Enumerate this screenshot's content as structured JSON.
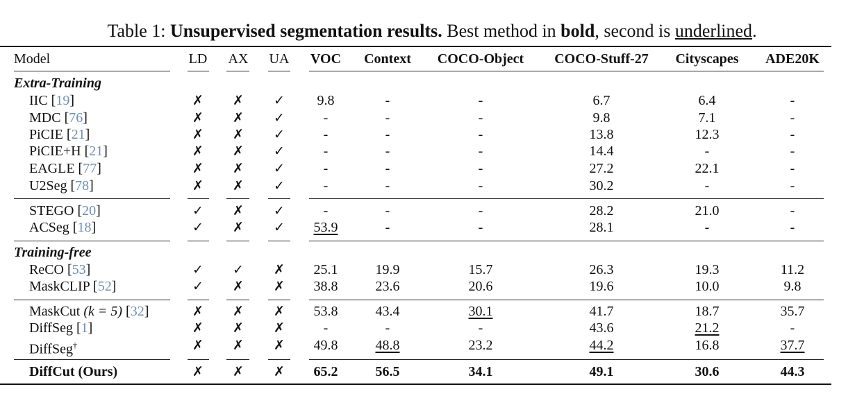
{
  "caption": {
    "label": "Table 1: ",
    "bold_title": "Unsupervised segmentation results.",
    "text1": " Best method in ",
    "bold_word": "bold",
    "text2": ", second is ",
    "underlined_word": "underlined",
    "text3": "."
  },
  "columns": [
    "Model",
    "LD",
    "AX",
    "UA",
    "VOC",
    "Context",
    "COCO-Object",
    "COCO-Stuff-27",
    "Cityscapes",
    "ADE20K"
  ],
  "sections": [
    {
      "title": "Extra-Training",
      "groups": [
        [
          {
            "name": "IIC",
            "ref": "19",
            "flags": [
              "cross",
              "cross",
              "check"
            ],
            "values": [
              "9.8",
              "-",
              "-",
              "6.7",
              "6.4",
              "-"
            ]
          },
          {
            "name": "MDC",
            "ref": "76",
            "flags": [
              "cross",
              "cross",
              "check"
            ],
            "values": [
              "-",
              "-",
              "-",
              "9.8",
              "7.1",
              "-"
            ]
          },
          {
            "name": "PiCIE",
            "ref": "21",
            "flags": [
              "cross",
              "cross",
              "check"
            ],
            "values": [
              "-",
              "-",
              "-",
              "13.8",
              "12.3",
              "-"
            ]
          },
          {
            "name": "PiCIE+H",
            "ref": "21",
            "flags": [
              "cross",
              "cross",
              "check"
            ],
            "values": [
              "-",
              "-",
              "-",
              "14.4",
              "-",
              "-"
            ]
          },
          {
            "name": "EAGLE",
            "ref": "77",
            "flags": [
              "cross",
              "cross",
              "check"
            ],
            "values": [
              "-",
              "-",
              "-",
              "27.2",
              "22.1",
              "-"
            ]
          },
          {
            "name": "U2Seg",
            "ref": "78",
            "flags": [
              "cross",
              "cross",
              "check"
            ],
            "values": [
              "-",
              "-",
              "-",
              "30.2",
              "-",
              "-"
            ]
          }
        ],
        [
          {
            "name": "STEGO",
            "ref": "20",
            "flags": [
              "check",
              "cross",
              "check"
            ],
            "values": [
              "-",
              "-",
              "-",
              "28.2",
              "21.0",
              "-"
            ]
          },
          {
            "name": "ACSeg",
            "ref": "18",
            "flags": [
              "check",
              "cross",
              "check"
            ],
            "values": [
              "53.9",
              "-",
              "-",
              "28.1",
              "-",
              "-"
            ],
            "underlined": [
              0
            ]
          }
        ]
      ]
    },
    {
      "title": "Training-free",
      "groups": [
        [
          {
            "name": "ReCO",
            "ref": "53",
            "flags": [
              "check",
              "check",
              "cross"
            ],
            "values": [
              "25.1",
              "19.9",
              "15.7",
              "26.3",
              "19.3",
              "11.2"
            ]
          },
          {
            "name": "MaskCLIP",
            "ref": "52",
            "flags": [
              "check",
              "cross",
              "cross"
            ],
            "values": [
              "38.8",
              "23.6",
              "20.6",
              "19.6",
              "10.0",
              "9.8"
            ]
          }
        ],
        [
          {
            "name": "MaskCut",
            "math": "(k = 5)",
            "ref": "32",
            "flags": [
              "cross",
              "cross",
              "cross"
            ],
            "values": [
              "53.8",
              "43.4",
              "30.1",
              "41.7",
              "18.7",
              "35.7"
            ],
            "underlined": [
              2
            ]
          },
          {
            "name": "DiffSeg",
            "ref": "1",
            "flags": [
              "cross",
              "cross",
              "cross"
            ],
            "values": [
              "-",
              "-",
              "-",
              "43.6",
              "21.2",
              "-"
            ],
            "underlined": [
              4
            ]
          },
          {
            "name": "DiffSeg",
            "sup": "†",
            "flags": [
              "cross",
              "cross",
              "cross"
            ],
            "values": [
              "49.8",
              "48.8",
              "23.2",
              "44.2",
              "16.8",
              "37.7"
            ],
            "underlined": [
              1,
              3,
              5
            ]
          }
        ]
      ]
    }
  ],
  "final_row": {
    "name": "DiffCut (Ours)",
    "flags": [
      "cross",
      "cross",
      "cross"
    ],
    "values": [
      "65.2",
      "56.5",
      "34.1",
      "49.1",
      "30.6",
      "44.3"
    ]
  },
  "marks": {
    "check": "✓",
    "cross": "✗"
  },
  "colors": {
    "citation": "#6b8fbf"
  }
}
